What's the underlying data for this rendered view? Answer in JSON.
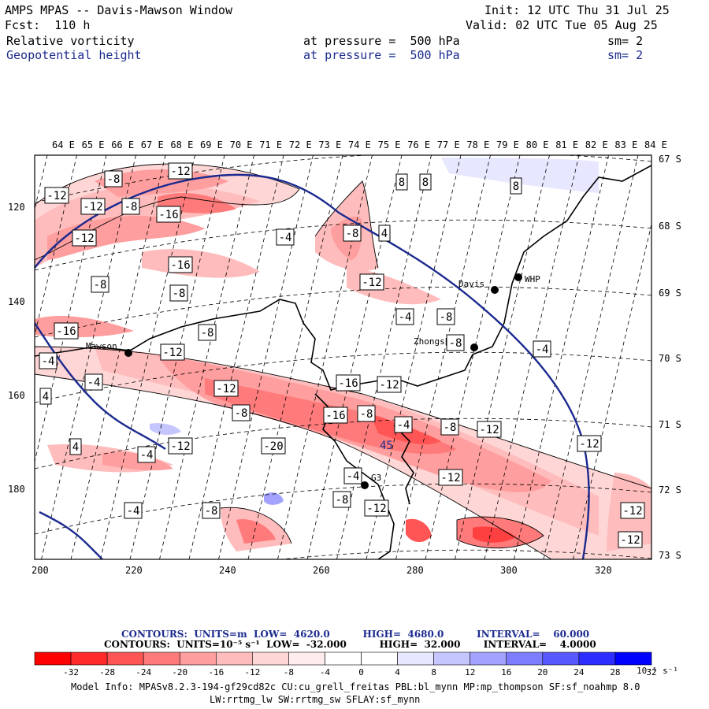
{
  "header": {
    "title": "AMPS MPAS -- Davis-Mawson Window",
    "forecast": "Fcst:  110 h",
    "init": "Init: 12 UTC Thu 31 Jul 25",
    "valid": "Valid: 02 UTC Tue 05 Aug 25",
    "field1": "Relative vorticity",
    "field1_level": "at pressure =  500 hPa",
    "field1_sm": "sm= 2",
    "field2": "Geopotential height",
    "field2_level": "at pressure =  500 hPa",
    "field2_sm": "sm= 2"
  },
  "axes": {
    "top_lon_labels": [
      "64 E",
      "65 E",
      "66 E",
      "67 E",
      "68 E",
      "69 E",
      "70 E",
      "71 E",
      "72 E",
      "73 E",
      "74 E",
      "75 E",
      "76 E",
      "77 E",
      "78 E",
      "79 E",
      "80 E",
      "81 E",
      "82 E",
      "83 E",
      "84 E"
    ],
    "right_lat_labels": [
      "67 S",
      "68 S",
      "69 S",
      "70 S",
      "71 S",
      "72 S",
      "73 S"
    ],
    "left_y_labels": [
      "120",
      "140",
      "160",
      "180"
    ],
    "bottom_x_labels": [
      "200",
      "220",
      "240",
      "260",
      "280",
      "300",
      "320"
    ]
  },
  "stations": [
    {
      "name": "Davis"
    },
    {
      "name": "WHP"
    },
    {
      "name": "Zhongshan"
    },
    {
      "name": "Mawson"
    },
    {
      "name": "G3"
    }
  ],
  "height_label": "45",
  "contour_labels": [
    "-12",
    "-8",
    "-12",
    "-12",
    "-8",
    "-16",
    "-12",
    "-4",
    "-8",
    "4",
    "8",
    "8",
    "8",
    "-16",
    "-8",
    "-8",
    "-12",
    "-16",
    "-8",
    "-4",
    "-8",
    "-4",
    "-4",
    "-12",
    "-12",
    "-16",
    "-8",
    "-12",
    "-16",
    "-8",
    "-4",
    "-8",
    "-12",
    "-20",
    "-12",
    "-4",
    "4",
    "-12",
    "-8",
    "-4",
    "-4",
    "-8",
    "-4",
    "-8",
    "-12",
    "-12",
    "-12",
    "-12",
    "4"
  ],
  "legend": {
    "contours_height": "CONTOURS:  UNITS=m  LOW=  4620.0          HIGH=  4680.0          INTERVAL=    60.000",
    "contours_vort": "CONTOURS:  UNITS=10⁻⁵ s⁻¹  LOW=  -32.000          HIGH=  32.000       INTERVAL=    4.0000",
    "colorbar_colors": [
      "#ff0000",
      "#ff2a2a",
      "#ff5555",
      "#ff7b7b",
      "#ff9e9e",
      "#ffbcbc",
      "#ffd6d6",
      "#ffecec",
      "#ffffff",
      "#ffffff",
      "#e7e7ff",
      "#c6c6ff",
      "#a3a3ff",
      "#7d7dff",
      "#5858ff",
      "#2d2dff",
      "#0000ff"
    ],
    "colorbar_ticks": [
      "-32",
      "-28",
      "-24",
      "-20",
      "-16",
      "-12",
      "-8",
      "-4",
      "0",
      "4",
      "8",
      "12",
      "16",
      "20",
      "24",
      "28",
      "32"
    ],
    "colorbar_unit": "10⁻⁵ s⁻¹"
  },
  "footer": {
    "line1": "Model Info: MPASv8.2.3-194-gf29cd82c CU:cu_grell_freitas PBL:bl_mynn MP:mp_thompson SF:sf_noahmp 8.0",
    "line2": "LW:rrtmg_lw SW:rrtmg_sw SFLAY:sf_mynn"
  }
}
